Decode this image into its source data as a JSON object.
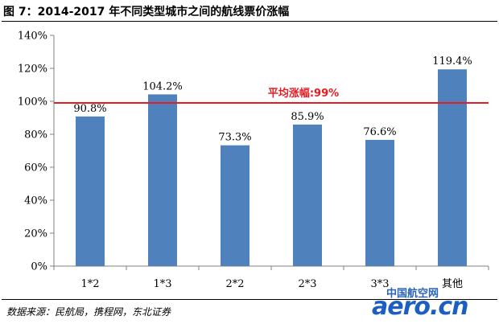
{
  "title": "图 7：2014-2017 年不同类型城市之间的航线票价涨幅",
  "source": "数据来源：民航局，携程网，东北证券",
  "watermark": {
    "cn": "中国航空网",
    "en": "aero.cn"
  },
  "colors": {
    "bar": "#4f81bd",
    "avg_line": "#e31d24",
    "avg_text": "#e31d24",
    "axis": "#808080"
  },
  "chart_data": {
    "type": "bar",
    "categories": [
      "1*2",
      "1*3",
      "2*2",
      "2*3",
      "3*3",
      "其他"
    ],
    "values": [
      90.8,
      104.2,
      73.3,
      85.9,
      76.6,
      119.4
    ],
    "data_labels": [
      "90.8%",
      "104.2%",
      "73.3%",
      "85.9%",
      "76.6%",
      "119.4%"
    ],
    "ylim": [
      0,
      140
    ],
    "yticks": [
      0,
      20,
      40,
      60,
      80,
      100,
      120,
      140
    ],
    "ytick_labels": [
      "0%",
      "20%",
      "40%",
      "60%",
      "80%",
      "100%",
      "120%",
      "140%"
    ],
    "grid": false,
    "average": {
      "value": 99,
      "label": "平均涨幅:99%"
    }
  }
}
